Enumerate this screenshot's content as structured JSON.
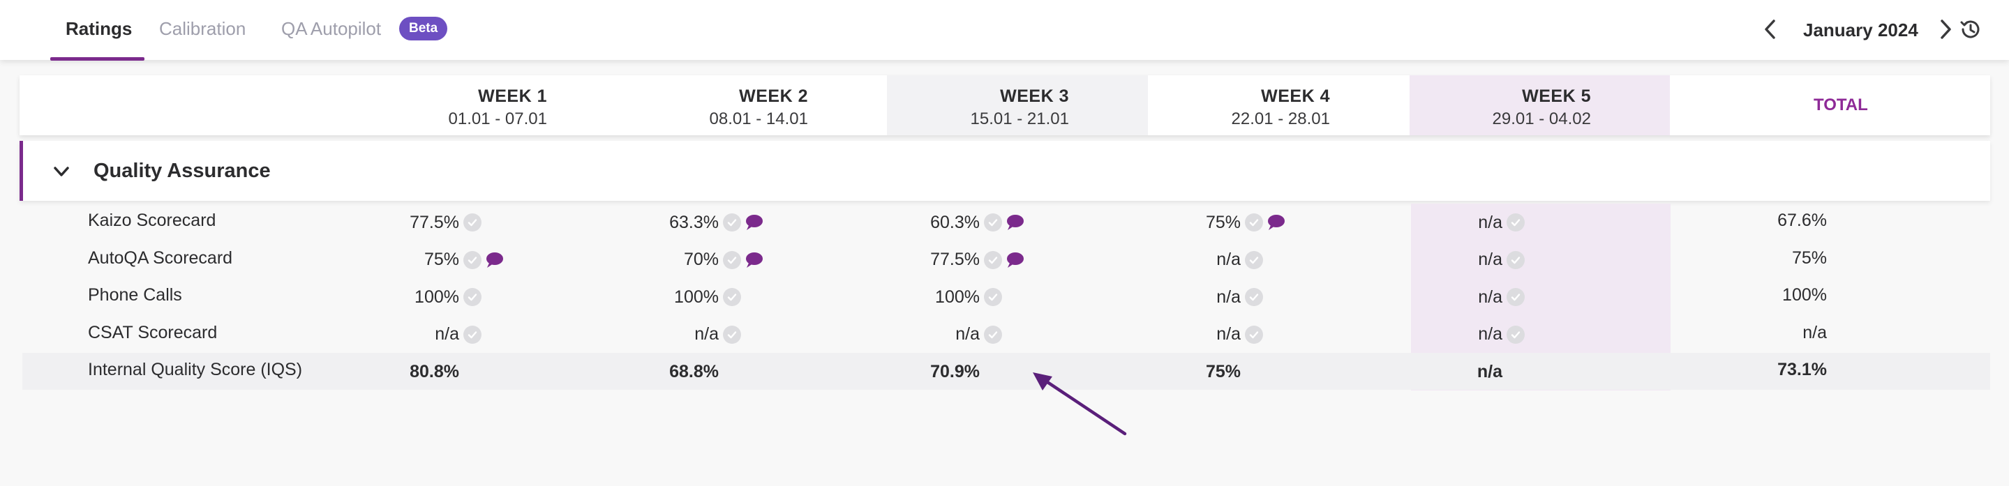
{
  "tabs": [
    {
      "label": "Ratings",
      "active": true
    },
    {
      "label": "Calibration",
      "active": false
    },
    {
      "label": "QA Autopilot",
      "active": false,
      "badge": "Beta"
    }
  ],
  "period": {
    "month_label": "January 2024"
  },
  "weeks": [
    {
      "title": "WEEK 1",
      "dates": "01.01 - 07.01"
    },
    {
      "title": "WEEK 2",
      "dates": "08.01 - 14.01"
    },
    {
      "title": "WEEK 3",
      "dates": "15.01 - 21.01"
    },
    {
      "title": "WEEK 4",
      "dates": "22.01 - 28.01"
    },
    {
      "title": "WEEK 5",
      "dates": "29.01 - 04.02"
    }
  ],
  "total_header": "TOTAL",
  "section": {
    "title": "Quality Assurance"
  },
  "rows": [
    {
      "label": "Kaizo Scorecard",
      "cells": [
        {
          "value": "77.5%",
          "check": true,
          "comment": false
        },
        {
          "value": "63.3%",
          "check": true,
          "comment": true
        },
        {
          "value": "60.3%",
          "check": true,
          "comment": true
        },
        {
          "value": "75%",
          "check": true,
          "comment": true
        },
        {
          "value": "n/a",
          "check": true,
          "comment": false
        }
      ],
      "total": "67.6%"
    },
    {
      "label": "AutoQA Scorecard",
      "cells": [
        {
          "value": "75%",
          "check": true,
          "comment": true
        },
        {
          "value": "70%",
          "check": true,
          "comment": true
        },
        {
          "value": "77.5%",
          "check": true,
          "comment": true
        },
        {
          "value": "n/a",
          "check": true,
          "comment": false
        },
        {
          "value": "n/a",
          "check": true,
          "comment": false
        }
      ],
      "total": "75%"
    },
    {
      "label": "Phone Calls",
      "cells": [
        {
          "value": "100%",
          "check": true,
          "comment": false
        },
        {
          "value": "100%",
          "check": true,
          "comment": false
        },
        {
          "value": "100%",
          "check": true,
          "comment": false
        },
        {
          "value": "n/a",
          "check": true,
          "comment": false
        },
        {
          "value": "n/a",
          "check": true,
          "comment": false
        }
      ],
      "total": "100%"
    },
    {
      "label": "CSAT Scorecard",
      "cells": [
        {
          "value": "n/a",
          "check": true,
          "comment": false
        },
        {
          "value": "n/a",
          "check": true,
          "comment": false
        },
        {
          "value": "n/a",
          "check": true,
          "comment": false
        },
        {
          "value": "n/a",
          "check": true,
          "comment": false
        },
        {
          "value": "n/a",
          "check": true,
          "comment": false
        }
      ],
      "total": "n/a"
    }
  ],
  "iqs_row": {
    "label": "Internal Quality Score (IQS)",
    "values": [
      "80.8%",
      "68.8%",
      "70.9%",
      "75%",
      "n/a"
    ],
    "total": "73.1%"
  },
  "colors": {
    "accent": "#7b2a8c",
    "comment_icon": "#7b2a8c",
    "week5_highlight": "#f1e8f3",
    "week3_highlight": "#f2f2f4",
    "beta_badge": "#6d4fc2"
  },
  "icons": {
    "prev": "chevron-left-icon",
    "next": "chevron-right-icon",
    "history": "history-icon",
    "collapse": "chevron-down-icon",
    "check": "check-circle-icon",
    "comment": "comment-bubble-icon"
  }
}
